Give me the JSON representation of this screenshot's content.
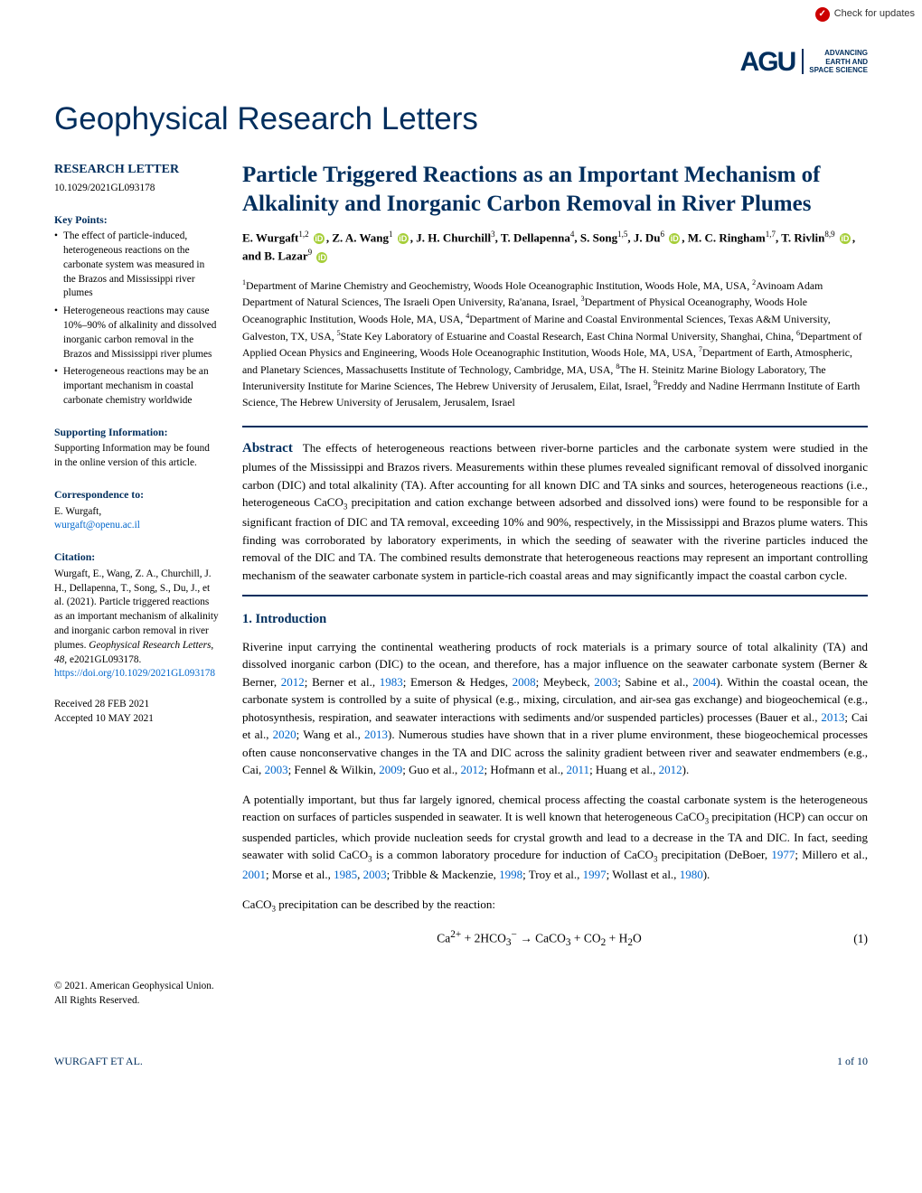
{
  "topbar": {
    "check_updates": "Check for updates"
  },
  "logo": {
    "agu_text": "AGU",
    "tagline_l1": "ADVANCING",
    "tagline_l2": "EARTH AND",
    "tagline_l3": "SPACE SCIENCE"
  },
  "journal_title": "Geophysical Research Letters",
  "sidebar": {
    "type_label": "RESEARCH LETTER",
    "doi": "10.1029/2021GL093178",
    "keypoints_heading": "Key Points:",
    "keypoints": [
      "The effect of particle-induced, heterogeneous reactions on the carbonate system was measured in the Brazos and Mississippi river plumes",
      "Heterogeneous reactions may cause 10%–90% of alkalinity and dissolved inorganic carbon removal in the Brazos and Mississippi river plumes",
      "Heterogeneous reactions may be an important mechanism in coastal carbonate chemistry worldwide"
    ],
    "supporting_heading": "Supporting Information:",
    "supporting_text": "Supporting Information may be found in the online version of this article.",
    "correspondence_heading": "Correspondence to:",
    "correspondence_name": "E. Wurgaft,",
    "correspondence_email": "wurgaft@openu.ac.il",
    "citation_heading": "Citation:",
    "citation_text_1": "Wurgaft, E., Wang, Z. A., Churchill, J. H., Dellapenna, T., Song, S., Du, J., et al. (2021). Particle triggered reactions as an important mechanism of alkalinity and inorganic carbon removal in river plumes. ",
    "citation_journal": "Geophysical Research Letters",
    "citation_text_2": ", ",
    "citation_vol": "48",
    "citation_text_3": ", e2021GL093178. ",
    "citation_doi": "https://doi.org/10.1029/2021GL093178",
    "received": "Received 28 FEB 2021",
    "accepted": "Accepted 10 MAY 2021",
    "copyright_1": "© 2021. American Geophysical Union.",
    "copyright_2": "All Rights Reserved."
  },
  "article": {
    "title": "Particle Triggered Reactions as an Important Mechanism of Alkalinity and Inorganic Carbon Removal in River Plumes",
    "authors_html": "E. Wurgaft<sup>1,2</sup> <span class='orcid'>iD</span>, Z. A. Wang<sup>1</sup> <span class='orcid'>iD</span>, J. H. Churchill<sup>3</sup>, T. Dellapenna<sup>4</sup>, S. Song<sup>1,5</sup>, J. Du<sup>6</sup> <span class='orcid'>iD</span>, M. C. Ringham<sup>1,7</sup>, T. Rivlin<sup>8,9</sup> <span class='orcid'>iD</span>, and B. Lazar<sup>9</sup> <span class='orcid'>iD</span>",
    "affiliations_html": "<sup>1</sup>Department of Marine Chemistry and Geochemistry, Woods Hole Oceanographic Institution, Woods Hole, MA, USA, <sup>2</sup>Avinoam Adam Department of Natural Sciences, The Israeli Open University, Ra'anana, Israel, <sup>3</sup>Department of Physical Oceanography, Woods Hole Oceanographic Institution, Woods Hole, MA, USA, <sup>4</sup>Department of Marine and Coastal Environmental Sciences, Texas A&M University, Galveston, TX, USA, <sup>5</sup>State Key Laboratory of Estuarine and Coastal Research, East China Normal University, Shanghai, China, <sup>6</sup>Department of Applied Ocean Physics and Engineering, Woods Hole Oceanographic Institution, Woods Hole, MA, USA, <sup>7</sup>Department of Earth, Atmospheric, and Planetary Sciences, Massachusetts Institute of Technology, Cambridge, MA, USA, <sup>8</sup>The H. Steinitz Marine Biology Laboratory, The Interuniversity Institute for Marine Sciences, The Hebrew University of Jerusalem, Eilat, Israel, <sup>9</sup>Freddy and Nadine Herrmann Institute of Earth Science, The Hebrew University of Jerusalem, Jerusalem, Israel",
    "abstract_label": "Abstract",
    "abstract_html": "The effects of heterogeneous reactions between river-borne particles and the carbonate system were studied in the plumes of the Mississippi and Brazos rivers. Measurements within these plumes revealed significant removal of dissolved inorganic carbon (DIC) and total alkalinity (TA). After accounting for all known DIC and TA sinks and sources, heterogeneous reactions (i.e., heterogeneous CaCO<sub>3</sub> precipitation and cation exchange between adsorbed and dissolved ions) were found to be responsible for a significant fraction of DIC and TA removal, exceeding 10% and 90%, respectively, in the Mississippi and Brazos plume waters. This finding was corroborated by laboratory experiments, in which the seeding of seawater with the riverine particles induced the removal of the DIC and TA. The combined results demonstrate that heterogeneous reactions may represent an important controlling mechanism of the seawater carbonate system in particle-rich coastal areas and may significantly impact the coastal carbon cycle.",
    "intro_heading": "1.  Introduction",
    "para1_html": "Riverine input carrying the continental weathering products of rock materials is a primary source of total alkalinity (TA) and dissolved inorganic carbon (DIC) to the ocean, and therefore, has a major influence on the seawater carbonate system (Berner & Berner, <span class='ref-link'>2012</span>; Berner et al., <span class='ref-link'>1983</span>; Emerson & Hedges, <span class='ref-link'>2008</span>; Meybeck, <span class='ref-link'>2003</span>; Sabine et al., <span class='ref-link'>2004</span>). Within the coastal ocean, the carbonate system is controlled by a suite of physical (e.g., mixing, circulation, and air-sea gas exchange) and biogeochemical (e.g., photosynthesis, respiration, and seawater interactions with sediments and/or suspended particles) processes (Bauer et al., <span class='ref-link'>2013</span>; Cai et al., <span class='ref-link'>2020</span>; Wang et al., <span class='ref-link'>2013</span>). Numerous studies have shown that in a river plume environment, these biogeochemical processes often cause nonconservative changes in the TA and DIC across the salinity gradient between river and seawater endmembers (e.g., Cai, <span class='ref-link'>2003</span>; Fennel & Wilkin, <span class='ref-link'>2009</span>; Guo et al., <span class='ref-link'>2012</span>; Hofmann et al., <span class='ref-link'>2011</span>; Huang et al., <span class='ref-link'>2012</span>).",
    "para2_html": "A potentially important, but thus far largely ignored, chemical process affecting the coastal carbonate system is the heterogeneous reaction on surfaces of particles suspended in seawater. It is well known that heterogeneous CaCO<sub>3</sub> precipitation (HCP) can occur on suspended particles, which provide nucleation seeds for crystal growth and lead to a decrease in the TA and DIC. In fact, seeding seawater with solid CaCO<sub>3</sub> is a common laboratory procedure for induction of CaCO<sub>3</sub> precipitation (DeBoer, <span class='ref-link'>1977</span>; Millero et al., <span class='ref-link'>2001</span>; Morse et al., <span class='ref-link'>1985</span>, <span class='ref-link'>2003</span>; Tribble & Mackenzie, <span class='ref-link'>1998</span>; Troy et al., <span class='ref-link'>1997</span>; Wollast et al., <span class='ref-link'>1980</span>).",
    "para3_html": "CaCO<sub>3</sub> precipitation can be described by the reaction:",
    "equation_html": "Ca<sup>2+</sup> + 2HCO<sub>3</sub><sup>−</sup> → CaCO<sub>3</sub> + CO<sub>2</sub> + H<sub>2</sub>O",
    "eq_num": "(1)"
  },
  "footer": {
    "author": "WURGAFT ET AL.",
    "page": "1 of 10"
  }
}
